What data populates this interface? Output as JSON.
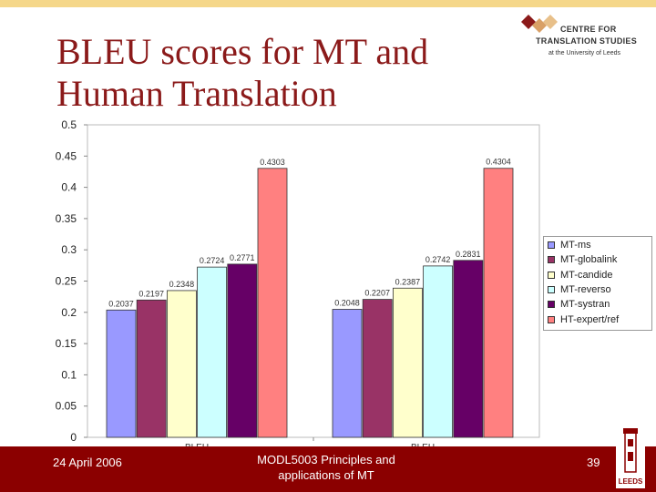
{
  "slide": {
    "title_line1": "BLEU scores for MT and",
    "title_line2": "Human Translation",
    "logo_line1": "CENTRE FOR",
    "logo_line2": "TRANSLATION STUDIES",
    "logo_line3": "at the University of Leeds",
    "footer_date": "24 April 2006",
    "footer_course_line1": "MODL5003 Principles and",
    "footer_course_line2": "applications of MT",
    "page_number": "39",
    "crest_text": "LEEDS",
    "colors": {
      "title": "#8b1a1a",
      "footer": "#8b0000",
      "topbar": "#f5d78a"
    }
  },
  "chart_data": {
    "type": "bar",
    "title": "",
    "xlabel": "",
    "ylabel": "",
    "categories": [
      "BLEU",
      "BLEU"
    ],
    "ylim": [
      0,
      0.5
    ],
    "yticks": [
      "0",
      "0.05",
      "0.1",
      "0.15",
      "0.2",
      "0.25",
      "0.3",
      "0.35",
      "0.4",
      "0.45",
      "0.5"
    ],
    "grid": false,
    "legend_position": "right",
    "series": [
      {
        "name": "MT-ms",
        "color": "#9999ff",
        "values": [
          0.2037,
          0.2048
        ],
        "labels": [
          "0.2037",
          "0.2048"
        ]
      },
      {
        "name": "MT-globalink",
        "color": "#993366",
        "values": [
          0.2197,
          0.2207
        ],
        "labels": [
          "0.2197",
          "0.2207"
        ]
      },
      {
        "name": "MT-candide",
        "color": "#ffffcc",
        "values": [
          0.2348,
          0.2387
        ],
        "labels": [
          "0.2348",
          "0.2387"
        ]
      },
      {
        "name": "MT-reverso",
        "color": "#ccffff",
        "values": [
          0.2724,
          0.2742
        ],
        "labels": [
          "0.2724",
          "0.2742"
        ]
      },
      {
        "name": "MT-systran",
        "color": "#660066",
        "values": [
          0.2771,
          0.2831
        ],
        "labels": [
          "0.2771",
          "0.2831"
        ]
      },
      {
        "name": "HT-expert/ref",
        "color": "#ff8080",
        "values": [
          0.4303,
          0.4304
        ],
        "labels": [
          "0.4303",
          "0.4304"
        ]
      }
    ]
  }
}
